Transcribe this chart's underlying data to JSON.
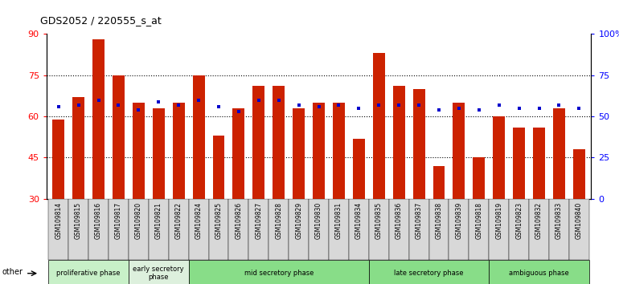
{
  "title": "GDS2052 / 220555_s_at",
  "samples": [
    "GSM109814",
    "GSM109815",
    "GSM109816",
    "GSM109817",
    "GSM109820",
    "GSM109821",
    "GSM109822",
    "GSM109824",
    "GSM109825",
    "GSM109826",
    "GSM109827",
    "GSM109828",
    "GSM109829",
    "GSM109830",
    "GSM109831",
    "GSM109834",
    "GSM109835",
    "GSM109836",
    "GSM109837",
    "GSM109838",
    "GSM109839",
    "GSM109818",
    "GSM109819",
    "GSM109823",
    "GSM109832",
    "GSM109833",
    "GSM109840"
  ],
  "count_values": [
    59,
    67,
    88,
    75,
    65,
    63,
    65,
    75,
    53,
    63,
    71,
    71,
    63,
    65,
    65,
    52,
    83,
    71,
    70,
    42,
    65,
    45,
    60,
    56,
    56,
    63,
    48
  ],
  "percentile_values": [
    56,
    57,
    60,
    57,
    54,
    59,
    57,
    60,
    56,
    53,
    60,
    60,
    57,
    56,
    57,
    55,
    57,
    57,
    57,
    54,
    55,
    54,
    57,
    55,
    55,
    57,
    55
  ],
  "phases": [
    {
      "name": "proliferative phase",
      "start": 0,
      "end": 4,
      "color": "#c8f0c8"
    },
    {
      "name": "early secretory\nphase",
      "start": 4,
      "end": 7,
      "color": "#ddf0dd"
    },
    {
      "name": "mid secretory phase",
      "start": 7,
      "end": 16,
      "color": "#88dd88"
    },
    {
      "name": "late secretory phase",
      "start": 16,
      "end": 22,
      "color": "#88dd88"
    },
    {
      "name": "ambiguous phase",
      "start": 22,
      "end": 27,
      "color": "#88dd88"
    }
  ],
  "bar_color": "#cc2200",
  "dot_color": "#0000cc",
  "ylim_left": [
    30,
    90
  ],
  "ylim_right": [
    0,
    100
  ],
  "yticks_left": [
    30,
    45,
    60,
    75,
    90
  ],
  "yticks_right": [
    0,
    25,
    50,
    75,
    100
  ],
  "grid_yticks": [
    45,
    60,
    75
  ],
  "bar_bottom": 30
}
